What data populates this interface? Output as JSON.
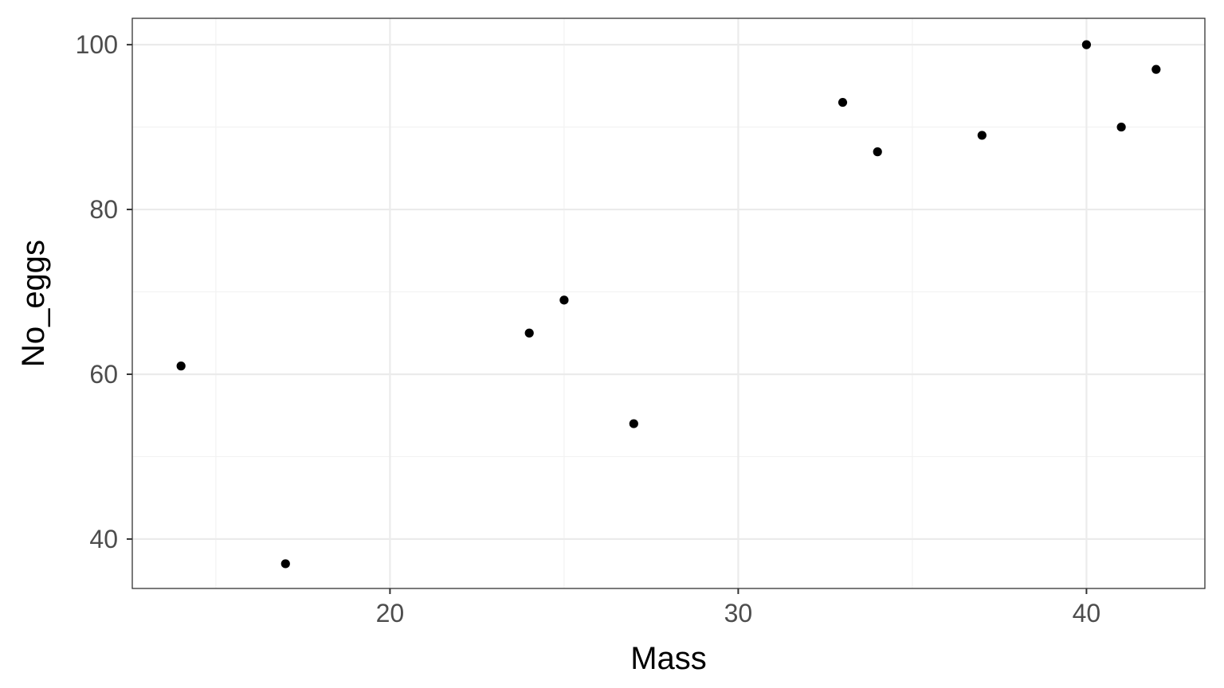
{
  "chart_data": {
    "type": "scatter",
    "title": "",
    "xlabel": "Mass",
    "ylabel": "No_eggs",
    "xlim": [
      12.6,
      43.4
    ],
    "ylim": [
      34.0,
      103.2
    ],
    "x_ticks": [
      20,
      30,
      40
    ],
    "y_ticks": [
      40,
      60,
      80,
      100
    ],
    "x_minor_ticks": [
      15,
      25,
      35
    ],
    "y_minor_ticks": [
      50,
      70,
      90
    ],
    "grid": true,
    "points": [
      {
        "x": 14.0,
        "y": 61
      },
      {
        "x": 17.0,
        "y": 37
      },
      {
        "x": 24.0,
        "y": 65
      },
      {
        "x": 25.0,
        "y": 69
      },
      {
        "x": 27.0,
        "y": 54
      },
      {
        "x": 33.0,
        "y": 93
      },
      {
        "x": 34.0,
        "y": 87
      },
      {
        "x": 37.0,
        "y": 89
      },
      {
        "x": 40.0,
        "y": 100
      },
      {
        "x": 41.0,
        "y": 90
      },
      {
        "x": 42.0,
        "y": 97
      }
    ],
    "colors": {
      "point": "#000000",
      "grid_major": "#ebebeb",
      "grid_minor": "#f2f2f2",
      "panel_border": "#333333",
      "tick_label": "#4d4d4d"
    }
  }
}
